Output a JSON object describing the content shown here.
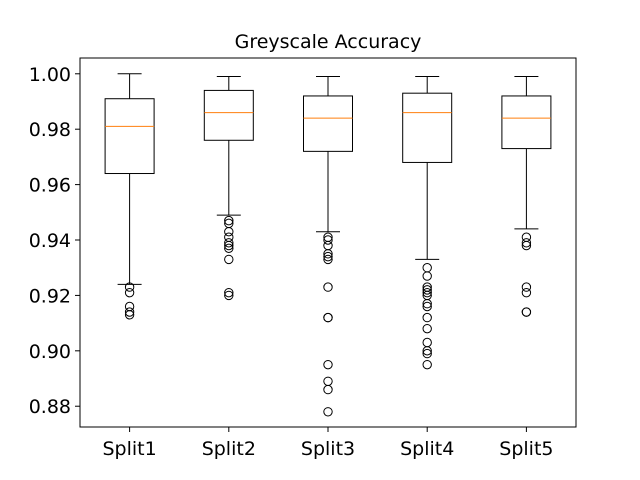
{
  "chart_data": {
    "type": "box",
    "title": "Greyscale Accuracy",
    "xlabel": "",
    "ylabel": "",
    "ylim": [
      0.8725,
      1.0057
    ],
    "yticks": [
      0.88,
      0.9,
      0.92,
      0.94,
      0.96,
      0.98,
      1.0
    ],
    "ytick_labels": [
      "0.88",
      "0.90",
      "0.92",
      "0.94",
      "0.96",
      "0.98",
      "1.00"
    ],
    "categories": [
      "Split1",
      "Split2",
      "Split3",
      "Split4",
      "Split5"
    ],
    "grid": false,
    "colors": {
      "box": "#000000",
      "median": "#ff7f0e",
      "flier": "#000000",
      "background": "#ffffff"
    },
    "boxes": [
      {
        "name": "Split1",
        "whisker_low": 0.924,
        "q1": 0.964,
        "median": 0.981,
        "q3": 0.991,
        "whisker_high": 1.0,
        "fliers": [
          0.923,
          0.921,
          0.916,
          0.914,
          0.913
        ]
      },
      {
        "name": "Split2",
        "whisker_low": 0.949,
        "q1": 0.976,
        "median": 0.986,
        "q3": 0.994,
        "whisker_high": 0.999,
        "fliers": [
          0.947,
          0.946,
          0.943,
          0.941,
          0.939,
          0.938,
          0.937,
          0.933,
          0.921,
          0.92
        ]
      },
      {
        "name": "Split3",
        "whisker_low": 0.943,
        "q1": 0.972,
        "median": 0.984,
        "q3": 0.992,
        "whisker_high": 0.999,
        "fliers": [
          0.941,
          0.94,
          0.938,
          0.935,
          0.934,
          0.933,
          0.923,
          0.912,
          0.912,
          0.895,
          0.889,
          0.886,
          0.878
        ]
      },
      {
        "name": "Split4",
        "whisker_low": 0.933,
        "q1": 0.968,
        "median": 0.986,
        "q3": 0.993,
        "whisker_high": 0.999,
        "fliers": [
          0.93,
          0.927,
          0.923,
          0.922,
          0.921,
          0.92,
          0.917,
          0.916,
          0.912,
          0.908,
          0.903,
          0.9,
          0.899,
          0.895
        ]
      },
      {
        "name": "Split5",
        "whisker_low": 0.944,
        "q1": 0.973,
        "median": 0.984,
        "q3": 0.992,
        "whisker_high": 0.999,
        "fliers": [
          0.941,
          0.939,
          0.938,
          0.923,
          0.921,
          0.914,
          0.914
        ]
      }
    ]
  }
}
